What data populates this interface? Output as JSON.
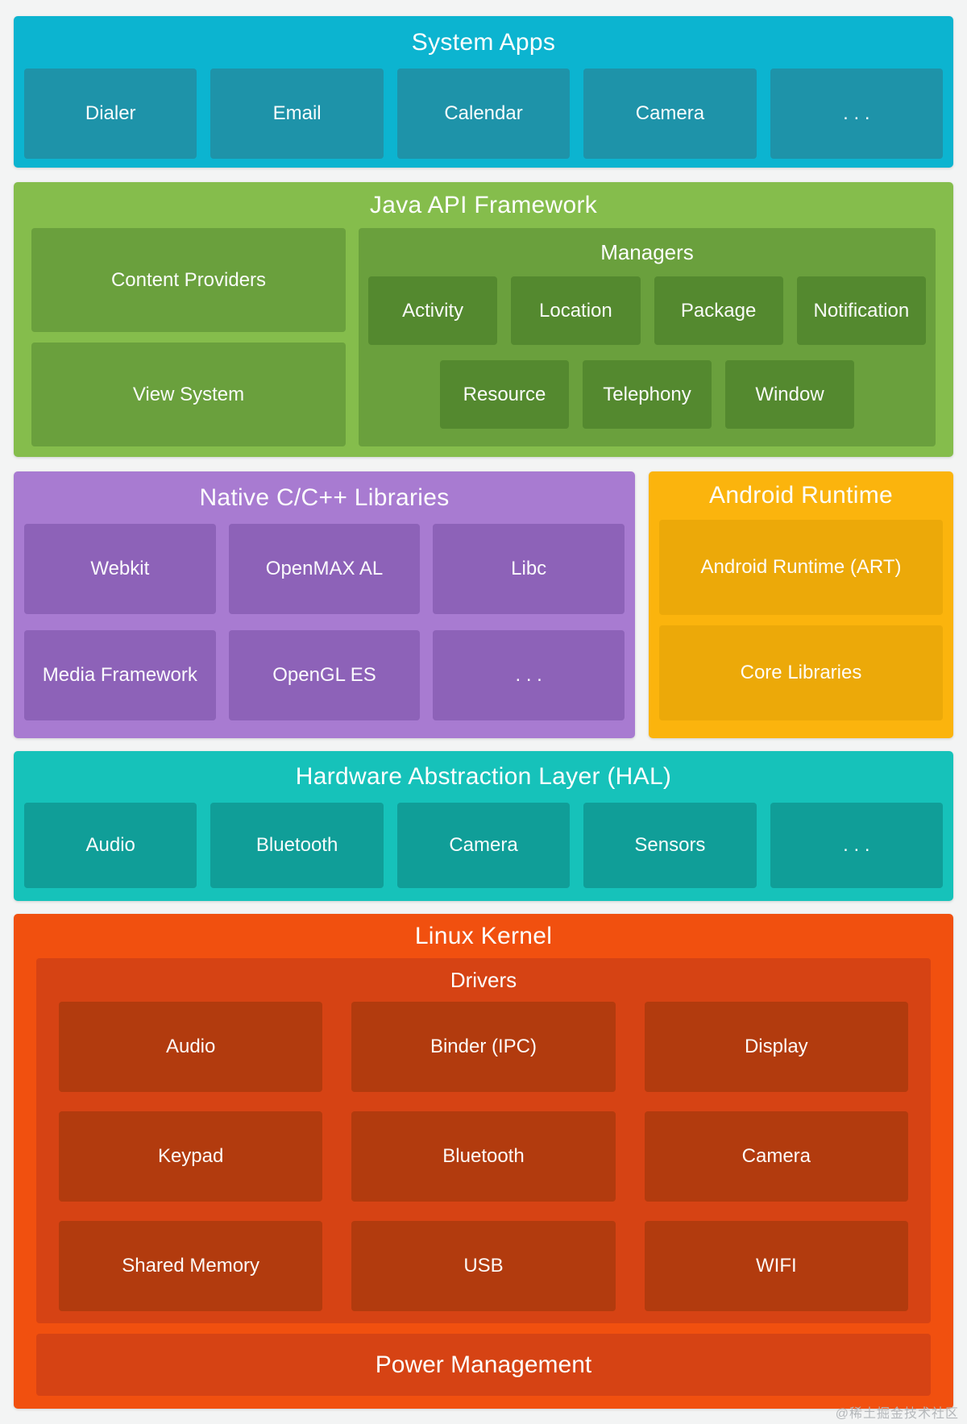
{
  "page": {
    "background": "#f3f4f4",
    "watermark": "@稀土掘金技术社区"
  },
  "sections": {
    "system_apps": {
      "title": "System Apps",
      "color_outer": "#0cb4d0",
      "color_inner": "#1e93a9",
      "items": [
        "Dialer",
        "Email",
        "Calendar",
        "Camera",
        ". . ."
      ]
    },
    "java_framework": {
      "title": "Java API Framework",
      "color_outer": "#85bd4c",
      "color_inner": "#6aa03d",
      "color_sub": "#54892f",
      "left_items": [
        "Content Providers",
        "View System"
      ],
      "managers": {
        "title": "Managers",
        "row1": [
          "Activity",
          "Location",
          "Package",
          "Notification"
        ],
        "row2": [
          "Resource",
          "Telephony",
          "Window"
        ]
      }
    },
    "native_libraries": {
      "title": "Native C/C++ Libraries",
      "color_outer": "#a87bd1",
      "color_inner": "#8d62b8",
      "items": [
        "Webkit",
        "OpenMAX AL",
        "Libc",
        "Media Framework",
        "OpenGL ES",
        ". . ."
      ]
    },
    "android_runtime": {
      "title": "Android Runtime",
      "color_outer": "#fbb40d",
      "color_inner": "#eca909",
      "items": [
        "Android Runtime (ART)",
        "Core Libraries"
      ]
    },
    "hal": {
      "title": "Hardware Abstraction Layer (HAL)",
      "color_outer": "#16c2ba",
      "color_inner": "#109e98",
      "items": [
        "Audio",
        "Bluetooth",
        "Camera",
        "Sensors",
        ". . ."
      ]
    },
    "linux_kernel": {
      "title": "Linux Kernel",
      "color_outer": "#f1500f",
      "color_inner": "#d64314",
      "color_sub": "#b23b0e",
      "drivers": {
        "title": "Drivers",
        "rows": [
          [
            "Audio",
            "Binder (IPC)",
            "Display"
          ],
          [
            "Keypad",
            "Bluetooth",
            "Camera"
          ],
          [
            "Shared Memory",
            "USB",
            "WIFI"
          ]
        ]
      },
      "power_label": "Power Management"
    }
  }
}
